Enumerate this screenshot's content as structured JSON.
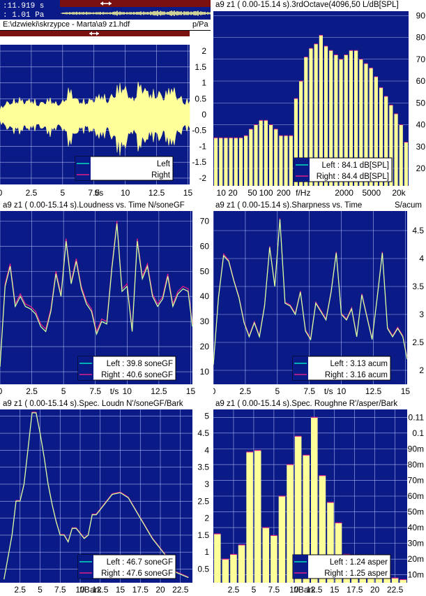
{
  "topbar": {
    "time_readout": ":11.919 s",
    "pa_readout": ":   1.01 Pa",
    "file_path": "E:\\dzwieki\\skrzypce - Marta\\a9  z1.hdf",
    "unit": "p/Pa"
  },
  "colors": {
    "plot_bg": "#0a1a86",
    "data": "#ffff99",
    "grid": "#aab3ee",
    "left": "#00e0c0",
    "right": "#e0208a",
    "titlebar": "#7a1010"
  },
  "icons": [
    "double-arrow-icon"
  ],
  "chart_data": [
    {
      "id": "waveform",
      "type": "area",
      "title": "",
      "xlabel": "t/s",
      "ylabel": "p/Pa",
      "xlim": [
        0,
        15.14
      ],
      "ylim": [
        -2.2,
        2.2
      ],
      "xticks": [
        "0",
        "2.5",
        "5",
        "7.5",
        "10",
        "12.5",
        "15"
      ],
      "yticks": [
        "2",
        "1.5",
        "1",
        "0.5",
        "0",
        "-0.5",
        "-1",
        "-1.5",
        "-2"
      ],
      "x": [
        0,
        0.5,
        1,
        1.5,
        2,
        2.5,
        3,
        3.5,
        4,
        4.5,
        5,
        5.5,
        6,
        6.5,
        7,
        7.5,
        8,
        8.5,
        9,
        9.5,
        10,
        10.5,
        11,
        11.5,
        12,
        12.5,
        13,
        13.5,
        14,
        14.5,
        15
      ],
      "env_max": [
        0.25,
        0.45,
        0.5,
        0.6,
        0.5,
        0.6,
        0.4,
        0.5,
        0.6,
        0.4,
        0.5,
        1.0,
        0.6,
        0.5,
        0.55,
        0.6,
        0.8,
        0.55,
        0.8,
        1.15,
        0.95,
        0.55,
        1.2,
        0.95,
        0.8,
        0.85,
        0.7,
        1.1,
        0.75,
        0.55,
        0.5
      ],
      "env_min": [
        -0.3,
        -0.5,
        -0.6,
        -0.7,
        -0.5,
        -0.6,
        -0.45,
        -0.55,
        -0.8,
        -0.45,
        -0.55,
        -1.2,
        -0.7,
        -0.6,
        -0.6,
        -0.7,
        -0.95,
        -0.6,
        -1.0,
        -1.5,
        -1.1,
        -0.6,
        -1.35,
        -1.0,
        -0.85,
        -0.95,
        -0.8,
        -1.3,
        -0.8,
        -0.6,
        -0.5
      ],
      "legend": {
        "left": "Left",
        "right": "Right"
      }
    },
    {
      "id": "third-octave",
      "type": "bar",
      "title": "a9  z1 ( 0.00-15.14 s).3rdOctave(4096,50 L/dB[SPL]",
      "xlabel": "f/Hz",
      "ylim": [
        12,
        92
      ],
      "xticks": [
        "10",
        "20",
        "50",
        "100",
        "200",
        "2000",
        "5000",
        "20k"
      ],
      "yticks": [
        "90",
        "80",
        "70",
        "60",
        "50",
        "40",
        "30",
        "20"
      ],
      "values": [
        34,
        34,
        34,
        34,
        34,
        34,
        35,
        38,
        40,
        42,
        42,
        40,
        38,
        35,
        35,
        35,
        52,
        60,
        71,
        75,
        77,
        81,
        76,
        74,
        72,
        70,
        72,
        74,
        74,
        70,
        68,
        66,
        62,
        57,
        53,
        49,
        45,
        40,
        32
      ],
      "legend": {
        "left": "Left : 84.1 dB[SPL]",
        "right": "Right : 84.4 dB[SPL]"
      }
    },
    {
      "id": "loudness-time",
      "type": "line",
      "title": "a9  z1 ( 0.00-15.14 s).Loudness vs. Time N/soneGF",
      "xlabel": "t/s",
      "xlim": [
        0,
        15.14
      ],
      "ylim": [
        5,
        74
      ],
      "xticks": [
        "0",
        "2.5",
        "5",
        "7.5",
        "10",
        "12.5",
        "15"
      ],
      "yticks": [
        "70",
        "60",
        "50",
        "40",
        "30",
        "20",
        "10"
      ],
      "x": [
        0,
        0.4,
        0.8,
        1.2,
        1.6,
        2.0,
        2.4,
        2.8,
        3.2,
        3.6,
        4.0,
        4.4,
        4.8,
        5.2,
        5.6,
        6.0,
        6.4,
        6.8,
        7.2,
        7.6,
        8.0,
        8.4,
        8.8,
        9.2,
        9.6,
        10.0,
        10.4,
        10.8,
        11.2,
        11.6,
        12.0,
        12.4,
        12.8,
        13.2,
        13.6,
        14.0,
        14.4,
        14.8,
        15.14
      ],
      "series": [
        {
          "name": "Left",
          "values": [
            12,
            44,
            52,
            36,
            40,
            36,
            35,
            33,
            28,
            26,
            34,
            49,
            40,
            62,
            45,
            54,
            43,
            37,
            34,
            25,
            30,
            29,
            51,
            69,
            42,
            44,
            26,
            62,
            47,
            52,
            40,
            36,
            39,
            48,
            36,
            41,
            43,
            42,
            28
          ]
        },
        {
          "name": "Right",
          "values": [
            13,
            45,
            53,
            37,
            41,
            37,
            36,
            34,
            29,
            27,
            35,
            50,
            41,
            63,
            46,
            55,
            44,
            38,
            35,
            26,
            31,
            30,
            52,
            70,
            43,
            45,
            27,
            63,
            48,
            53,
            41,
            37,
            40,
            49,
            37,
            42,
            44,
            43,
            29
          ]
        }
      ],
      "legend": {
        "left": "Left : 39.8 soneGF",
        "right": "Right : 40.6 soneGF"
      }
    },
    {
      "id": "sharpness-time",
      "type": "line",
      "title": "a9  z1 ( 0.00-15.14 s).Sharpness vs. Time",
      "ylabel": "S/acum",
      "xlabel": "t/s",
      "xlim": [
        0,
        15.14
      ],
      "ylim": [
        1.75,
        4.85
      ],
      "xticks": [
        "0",
        "2.5",
        "5",
        "7.5",
        "10",
        "12.5",
        "15"
      ],
      "yticks": [
        "4.5",
        "4",
        "3.5",
        "3",
        "2.5",
        "2"
      ],
      "x": [
        0,
        0.4,
        0.8,
        1.2,
        1.6,
        2.0,
        2.4,
        2.8,
        3.2,
        3.6,
        4.0,
        4.4,
        4.8,
        5.2,
        5.6,
        6.0,
        6.4,
        6.8,
        7.2,
        7.6,
        8.0,
        8.4,
        8.8,
        9.2,
        9.6,
        10.0,
        10.4,
        10.8,
        11.2,
        11.6,
        12.0,
        12.4,
        12.8,
        13.2,
        13.6,
        14.0,
        14.4,
        14.8,
        15.14
      ],
      "series": [
        {
          "name": "Left",
          "values": [
            2.1,
            3.3,
            4.05,
            3.95,
            3.6,
            3.3,
            2.85,
            2.6,
            2.85,
            2.6,
            3.15,
            4.2,
            3.5,
            4.7,
            3.2,
            3.15,
            3.0,
            3.4,
            2.7,
            2.55,
            3.2,
            3.05,
            2.9,
            3.4,
            4.1,
            3.0,
            2.9,
            3.1,
            2.6,
            3.35,
            2.95,
            2.55,
            3.3,
            4.1,
            2.75,
            2.6,
            2.75,
            2.6,
            2.2
          ]
        },
        {
          "name": "Right",
          "values": [
            2.12,
            3.32,
            4.08,
            3.97,
            3.62,
            3.32,
            2.87,
            2.62,
            2.87,
            2.62,
            3.17,
            4.22,
            3.52,
            4.72,
            3.22,
            3.17,
            3.02,
            3.42,
            2.72,
            2.57,
            3.22,
            3.07,
            2.92,
            3.42,
            4.12,
            3.02,
            2.92,
            3.12,
            2.62,
            3.37,
            2.97,
            2.57,
            3.32,
            4.12,
            2.77,
            2.62,
            2.77,
            2.62,
            2.22
          ]
        }
      ],
      "legend": {
        "left": "Left : 3.13 acum",
        "right": "Right : 3.16 acum"
      }
    },
    {
      "id": "spec-loudness",
      "type": "line",
      "title": "a9  z1 ( 0.00-15.14 s).Spec. Loudn N'/soneGF/Bark",
      "xlabel": "f/Bark",
      "xlim": [
        0,
        24
      ],
      "ylim": [
        0.1,
        5.2
      ],
      "xticks": [
        "2.5",
        "5",
        "7.5",
        "10",
        "12.5",
        "15",
        "17.5",
        "20",
        "22.5"
      ],
      "yticks": [
        "5",
        "4.5",
        "4",
        "3.5",
        "3",
        "2.5",
        "2",
        "1.5",
        "1",
        "0.5"
      ],
      "x": [
        0.5,
        1.5,
        2.0,
        2.5,
        3.0,
        4.0,
        4.5,
        5.0,
        5.5,
        6.0,
        6.5,
        7.0,
        7.5,
        8.0,
        8.5,
        9.0,
        9.5,
        10.5,
        11.0,
        11.5,
        12.0,
        13.0,
        14.0,
        15.0,
        16.0,
        16.5,
        17.0,
        17.5,
        18.0,
        18.5,
        19.0,
        20.0,
        21.0,
        21.5,
        22.0,
        22.5,
        23.0,
        23.5
      ],
      "series": [
        {
          "name": "Left",
          "values": [
            0.2,
            1.5,
            2.5,
            2.5,
            3.0,
            5.1,
            5.1,
            4.5,
            3.8,
            3.0,
            2.4,
            1.9,
            1.5,
            1.5,
            1.3,
            1.7,
            1.7,
            1.4,
            1.5,
            2.1,
            2.1,
            2.4,
            2.7,
            2.75,
            2.6,
            2.4,
            2.2,
            2.0,
            1.8,
            1.6,
            1.4,
            1.1,
            0.8,
            0.55,
            0.4,
            0.35,
            0.3,
            0.25
          ]
        },
        {
          "name": "Right",
          "values": [
            0.21,
            1.52,
            2.52,
            2.52,
            3.02,
            5.12,
            5.12,
            4.52,
            3.82,
            3.02,
            2.42,
            1.92,
            1.52,
            1.52,
            1.32,
            1.72,
            1.72,
            1.42,
            1.52,
            2.12,
            2.12,
            2.42,
            2.72,
            2.77,
            2.62,
            2.42,
            2.22,
            2.02,
            1.82,
            1.62,
            1.42,
            1.12,
            0.82,
            0.57,
            0.42,
            0.37,
            0.32,
            0.27
          ]
        }
      ],
      "legend": {
        "left": "Left : 46.7 soneGF",
        "right": "Right : 47.6 soneGF"
      }
    },
    {
      "id": "spec-roughness",
      "type": "bar",
      "title": "a9  z1 ( 0.00-15.14 s).Spec. Roughne R'/asper/Bark",
      "xlabel": "f/Bark",
      "xlim": [
        0,
        24
      ],
      "ylim": [
        0.005,
        0.115
      ],
      "xticks": [
        "2.5",
        "5",
        "7.5",
        "10",
        "12.5",
        "15",
        "17.5",
        "20",
        "22.5"
      ],
      "yticks": [
        "0.11",
        "0.1",
        "90m",
        "80m",
        "70m",
        "60m",
        "50m",
        "40m",
        "30m",
        "20m",
        "10m"
      ],
      "values": [
        0.036,
        0.02,
        0.023,
        0.029,
        0.088,
        0.089,
        0.04,
        0.035,
        0.06,
        0.08,
        0.098,
        0.086,
        0.11,
        0.073,
        0.056,
        0.043,
        0.023,
        0.015,
        0.011,
        0.01,
        0.011,
        0.009,
        0.008,
        0.007
      ],
      "legend": {
        "left": "Left : 1.24 asper",
        "right": "Right : 1.25 asper"
      }
    }
  ]
}
